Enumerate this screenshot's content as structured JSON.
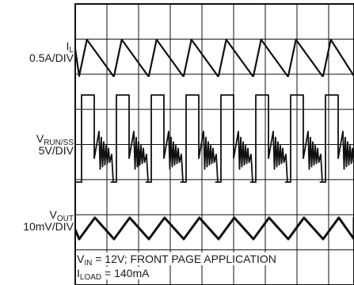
{
  "chart_data": {
    "type": "line",
    "title": "",
    "grid": true,
    "grid_divisions": {
      "horizontal": 10,
      "vertical": 8
    },
    "channels": [
      {
        "name_main": "I",
        "name_sub": "L",
        "scale": "0.5A/DIV",
        "waveform": "triangle",
        "cycles": 8,
        "amplitude_div": 0.9
      },
      {
        "name_main": "V",
        "name_sub": "RUN/SS",
        "scale": "5V/DIV",
        "waveform": "switching-pulse",
        "cycles": 8,
        "amplitude_div": 2.7
      },
      {
        "name_main": "V",
        "name_sub": "OUT",
        "scale": "10mV/DIV",
        "waveform": "triangle-ripple",
        "cycles": 8,
        "amplitude_div": 0.55
      }
    ],
    "annotations": [
      {
        "main": "V",
        "sub": "IN",
        "rest": " = 12V; FRONT PAGE APPLICATION"
      },
      {
        "main": "I",
        "sub": "LOAD",
        "rest": " = 140mA"
      }
    ]
  }
}
